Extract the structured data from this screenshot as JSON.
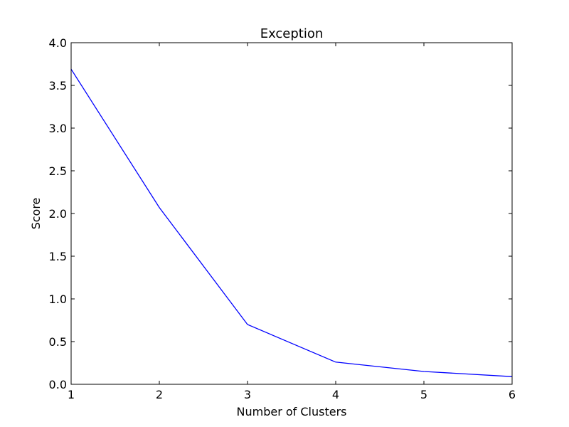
{
  "chart_data": {
    "type": "line",
    "title": "Exception",
    "xlabel": "Number of Clusters",
    "ylabel": "Score",
    "x": [
      1,
      2,
      3,
      4,
      5,
      6
    ],
    "series": [
      {
        "values": [
          3.69,
          2.07,
          0.7,
          0.26,
          0.15,
          0.09
        ],
        "color": "#0000ff"
      }
    ],
    "xlim": [
      1,
      6
    ],
    "ylim": [
      0,
      4.0
    ],
    "xticks": [
      1,
      2,
      3,
      4,
      5,
      6
    ],
    "xtick_labels": [
      "1",
      "2",
      "3",
      "4",
      "5",
      "6"
    ],
    "yticks": [
      0,
      0.5,
      1.0,
      1.5,
      2.0,
      2.5,
      3.0,
      3.5,
      4.0
    ],
    "ytick_labels": [
      "0.0",
      "0.5",
      "1.0",
      "1.5",
      "2.0",
      "2.5",
      "3.0",
      "3.5",
      "4.0"
    ],
    "grid": false,
    "legend": "none"
  }
}
